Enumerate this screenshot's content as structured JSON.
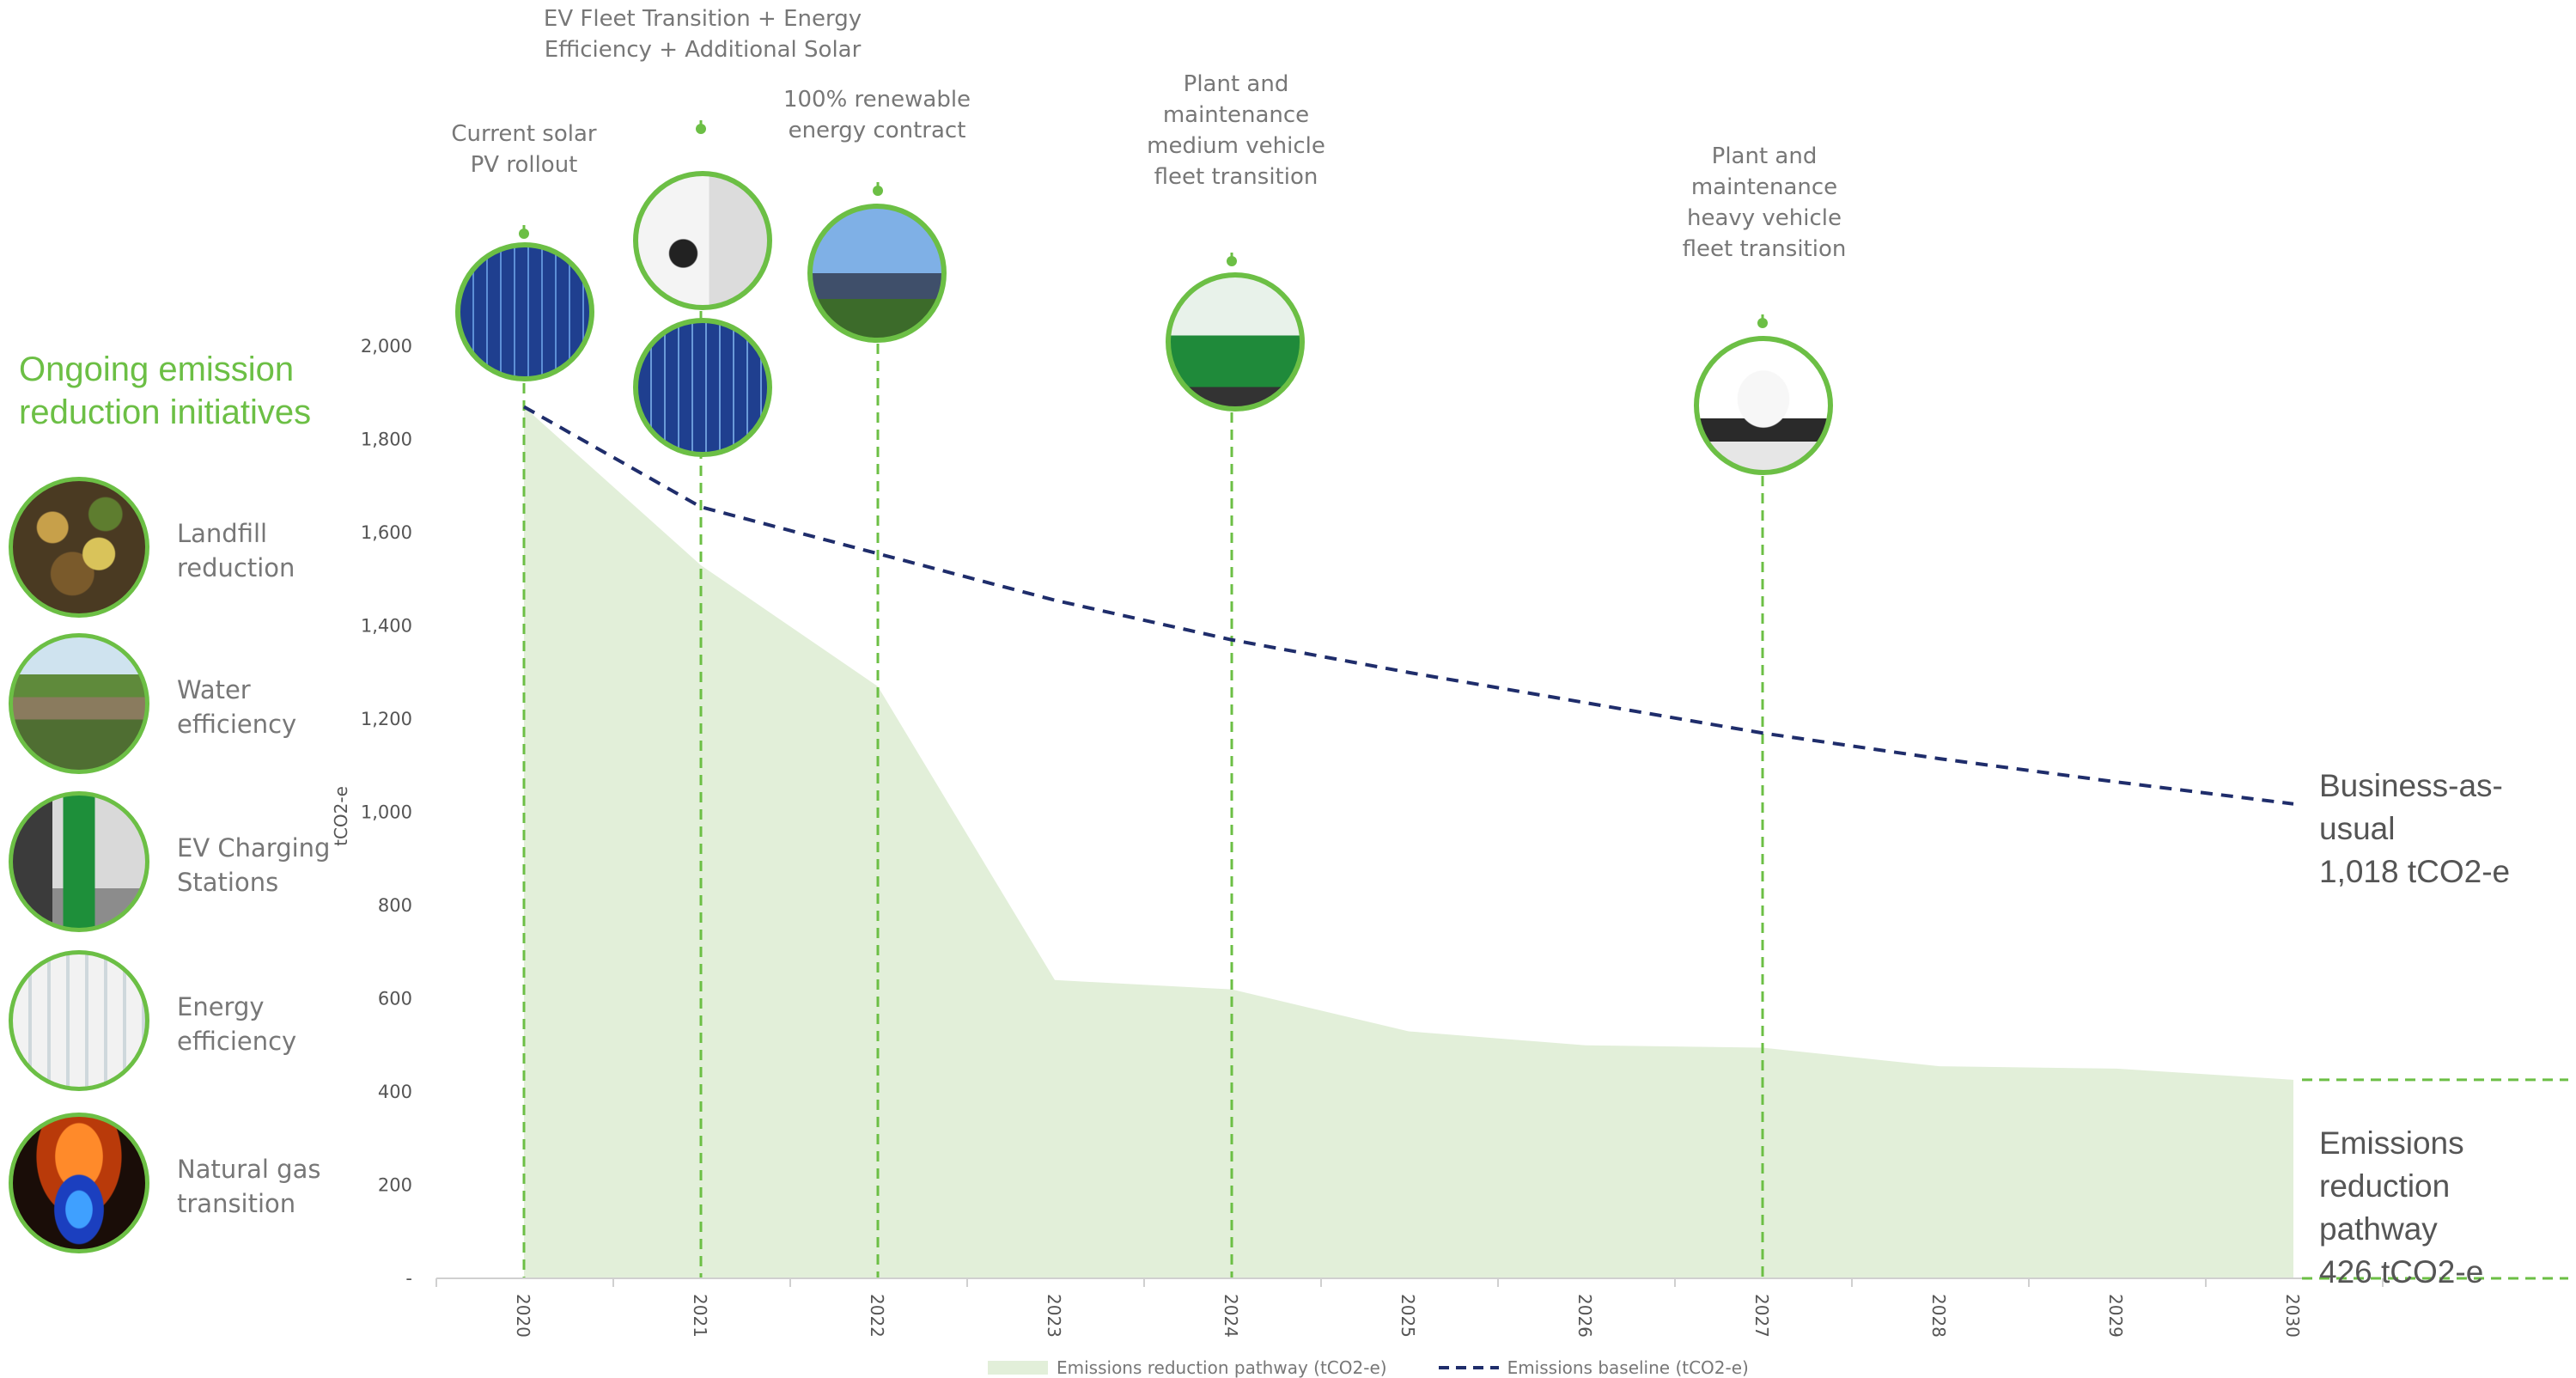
{
  "chart_data": {
    "type": "area",
    "x": [
      2020,
      2021,
      2022,
      2023,
      2024,
      2025,
      2026,
      2027,
      2028,
      2029,
      2030
    ],
    "ylabel": "tCO2-e",
    "ylim": [
      0,
      2000
    ],
    "yticks": [
      "-",
      "200",
      "400",
      "600",
      "800",
      "1,000",
      "1,200",
      "1,400",
      "1,600",
      "1,800",
      "2,000"
    ],
    "series": [
      {
        "name": "Emissions reduction pathway (tCO2-e)",
        "type": "area",
        "color": "#e2efd9",
        "values": [
          1870,
          1530,
          1270,
          640,
          620,
          530,
          500,
          495,
          455,
          450,
          426
        ]
      },
      {
        "name": "Emissions baseline (tCO2-e)",
        "type": "line-dashed",
        "color": "#1f2d6b",
        "values": [
          1870,
          1655,
          1555,
          1455,
          1370,
          1300,
          1235,
          1170,
          1115,
          1065,
          1018
        ]
      }
    ],
    "grid": false,
    "legend_position": "bottom"
  },
  "annotations": [
    {
      "year": 2020,
      "label": "Current solar\nPV rollout",
      "image": "solar-panel-icon"
    },
    {
      "year": 2021,
      "label": "EV Fleet Transition + Energy\nEfficiency + Additional Solar",
      "image": "ev-charger-icon"
    },
    {
      "year": 2022,
      "label": "100% renewable\nenergy contract",
      "image": "solar-farm-icon"
    },
    {
      "year": 2024,
      "label": "Plant and\nmaintenance\nmedium vehicle\nfleet transition",
      "image": "zero-emissions-bus-icon"
    },
    {
      "year": 2027,
      "label": "Plant and\nmaintenance\nheavy vehicle\nfleet transition",
      "image": "truck-icon"
    }
  ],
  "sidebar": {
    "title": "Ongoing emission reduction initiatives",
    "items": [
      {
        "label": "Landfill\nreduction",
        "icon": "compost-icon"
      },
      {
        "label": "Water\nefficiency",
        "icon": "wetland-icon"
      },
      {
        "label": "EV Charging\nStations",
        "icon": "ev-charging-station-icon"
      },
      {
        "label": "Energy\nefficiency",
        "icon": "office-lighting-icon"
      },
      {
        "label": "Natural gas\ntransition",
        "icon": "gas-flame-icon"
      }
    ]
  },
  "callouts": {
    "bau_line1": "Business-as-usual",
    "bau_line2": "1,018 tCO2-e",
    "pathway_line1": "Emissions",
    "pathway_line2": "reduction pathway",
    "pathway_line3": "426 tCO2-e"
  },
  "colors": {
    "accent": "#6cbf45",
    "baseline": "#1f2d6b",
    "area": "#e2efd9"
  }
}
